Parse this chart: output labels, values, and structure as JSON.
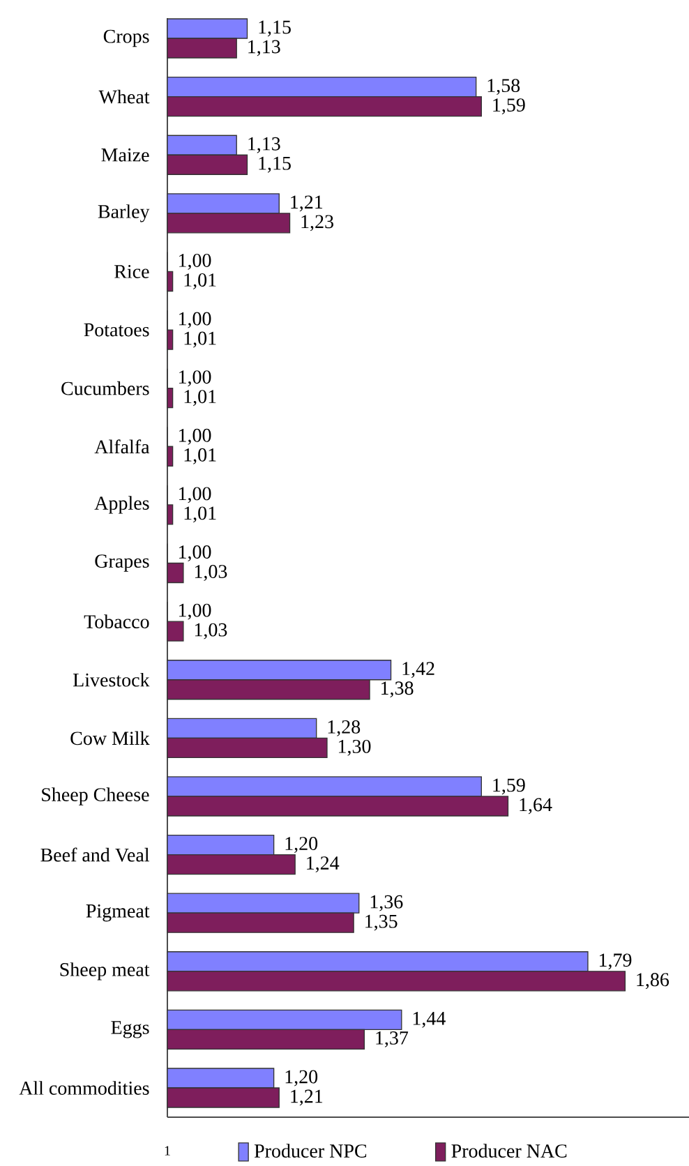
{
  "chart_data": {
    "type": "bar",
    "orientation": "horizontal",
    "categories": [
      "Crops",
      "Wheat",
      "Maize",
      "Barley",
      "Rice",
      "Potatoes",
      "Cucumbers",
      "Alfalfa",
      "Apples",
      "Grapes",
      "Tobacco",
      "Livestock",
      "Cow Milk",
      "Sheep Cheese",
      "Beef and Veal",
      "Pigmeat",
      "Sheep meat",
      "Eggs",
      "All commodities"
    ],
    "series": [
      {
        "name": "Producer NPC",
        "color": "#8080ff",
        "values": [
          1.15,
          1.58,
          1.13,
          1.21,
          1.0,
          1.0,
          1.0,
          1.0,
          1.0,
          1.0,
          1.0,
          1.42,
          1.28,
          1.59,
          1.2,
          1.36,
          1.79,
          1.44,
          1.2
        ],
        "value_labels": [
          "1,15",
          "1,58",
          "1,13",
          "1,21",
          "1,00",
          "1,00",
          "1,00",
          "1,00",
          "1,00",
          "1,00",
          "1,00",
          "1,42",
          "1,28",
          "1,59",
          "1,20",
          "1,36",
          "1,79",
          "1,44",
          "1,20"
        ]
      },
      {
        "name": "Producer NAC",
        "color": "#7e1e5c",
        "values": [
          1.13,
          1.59,
          1.15,
          1.23,
          1.01,
          1.01,
          1.01,
          1.01,
          1.01,
          1.03,
          1.03,
          1.38,
          1.3,
          1.64,
          1.24,
          1.35,
          1.86,
          1.37,
          1.21
        ],
        "value_labels": [
          "1,13",
          "1,59",
          "1,15",
          "1,23",
          "1,01",
          "1,01",
          "1,01",
          "1,01",
          "1,01",
          "1,03",
          "1,03",
          "1,38",
          "1,30",
          "1,64",
          "1,24",
          "1,35",
          "1,86",
          "1,37",
          "1,21"
        ]
      }
    ],
    "xlim": [
      1,
      1.98
    ],
    "annotations": [
      "1"
    ],
    "legend": "bottom"
  }
}
